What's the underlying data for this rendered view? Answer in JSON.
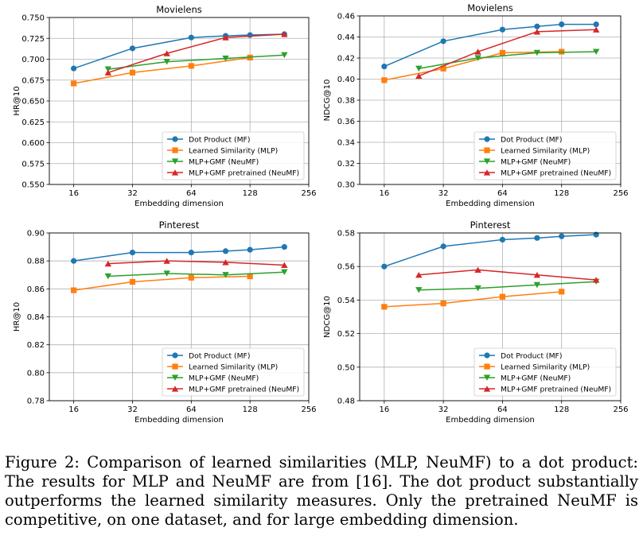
{
  "figure": {
    "caption": "Figure 2: Comparison of learned similarities (MLP, NeuMF) to a dot product: The results for MLP and NeuMF are from [16]. The dot product substantially outperforms the learned similarity measures. Only the pretrained NeuMF is competitive, on one dataset, and for large embedding dimension."
  },
  "series_style": [
    {
      "name": "Dot Product (MF)",
      "color": "#1f77b4",
      "marker": "circle"
    },
    {
      "name": "Learned Similarity (MLP)",
      "color": "#ff7f0e",
      "marker": "square"
    },
    {
      "name": "MLP+GMF (NeuMF)",
      "color": "#2ca02c",
      "marker": "triangle-down"
    },
    {
      "name": "MLP+GMF pretrained (NeuMF)",
      "color": "#d62728",
      "marker": "triangle-up"
    }
  ],
  "chart_data": [
    {
      "type": "line",
      "title": "Movielens",
      "xlabel": "Embedding dimension",
      "ylabel": "HR@10",
      "xscale": "log2",
      "xlim": [
        12,
        256
      ],
      "xticks": [
        16,
        32,
        64,
        128,
        256
      ],
      "ylim": [
        0.55,
        0.75
      ],
      "yticks": [
        "0.550",
        "0.575",
        "0.600",
        "0.625",
        "0.650",
        "0.675",
        "0.700",
        "0.725",
        "0.750"
      ],
      "grid": true,
      "legend": "lower-right",
      "series": [
        {
          "name": "Dot Product (MF)",
          "x": [
            16,
            32,
            64,
            96,
            128,
            192
          ],
          "y": [
            0.689,
            0.713,
            0.726,
            0.728,
            0.729,
            0.73
          ]
        },
        {
          "name": "Learned Similarity (MLP)",
          "x": [
            16,
            32,
            64,
            128
          ],
          "y": [
            0.671,
            0.684,
            0.692,
            0.702
          ]
        },
        {
          "name": "MLP+GMF (NeuMF)",
          "x": [
            24,
            48,
            96,
            192
          ],
          "y": [
            0.688,
            0.697,
            0.701,
            0.705
          ]
        },
        {
          "name": "MLP+GMF pretrained (NeuMF)",
          "x": [
            24,
            48,
            96,
            192
          ],
          "y": [
            0.684,
            0.707,
            0.726,
            0.73
          ]
        }
      ]
    },
    {
      "type": "line",
      "title": "Movielens",
      "xlabel": "Embedding dimension",
      "ylabel": "NDCG@10",
      "xscale": "log2",
      "xlim": [
        12,
        256
      ],
      "xticks": [
        16,
        32,
        64,
        128,
        256
      ],
      "ylim": [
        0.3,
        0.46
      ],
      "yticks": [
        "0.30",
        "0.32",
        "0.34",
        "0.36",
        "0.38",
        "0.40",
        "0.42",
        "0.44",
        "0.46"
      ],
      "grid": true,
      "legend": "lower-right",
      "series": [
        {
          "name": "Dot Product (MF)",
          "x": [
            16,
            32,
            64,
            96,
            128,
            192
          ],
          "y": [
            0.412,
            0.436,
            0.447,
            0.45,
            0.452,
            0.452
          ]
        },
        {
          "name": "Learned Similarity (MLP)",
          "x": [
            16,
            32,
            64,
            128
          ],
          "y": [
            0.399,
            0.41,
            0.425,
            0.426
          ]
        },
        {
          "name": "MLP+GMF (NeuMF)",
          "x": [
            24,
            48,
            96,
            192
          ],
          "y": [
            0.41,
            0.42,
            0.425,
            0.426
          ]
        },
        {
          "name": "MLP+GMF pretrained (NeuMF)",
          "x": [
            24,
            48,
            96,
            192
          ],
          "y": [
            0.403,
            0.426,
            0.445,
            0.447
          ]
        }
      ]
    },
    {
      "type": "line",
      "title": "Pinterest",
      "xlabel": "Embedding dimension",
      "ylabel": "HR@10",
      "xscale": "log2",
      "xlim": [
        12,
        256
      ],
      "xticks": [
        16,
        32,
        64,
        128,
        256
      ],
      "ylim": [
        0.78,
        0.9
      ],
      "yticks": [
        "0.78",
        "0.80",
        "0.82",
        "0.84",
        "0.86",
        "0.88",
        "0.90"
      ],
      "grid": true,
      "legend": "lower-right",
      "series": [
        {
          "name": "Dot Product (MF)",
          "x": [
            16,
            32,
            64,
            96,
            128,
            192
          ],
          "y": [
            0.88,
            0.886,
            0.886,
            0.887,
            0.888,
            0.89
          ]
        },
        {
          "name": "Learned Similarity (MLP)",
          "x": [
            16,
            32,
            64,
            128
          ],
          "y": [
            0.859,
            0.865,
            0.868,
            0.869
          ]
        },
        {
          "name": "MLP+GMF (NeuMF)",
          "x": [
            24,
            48,
            96,
            192
          ],
          "y": [
            0.869,
            0.871,
            0.87,
            0.872
          ]
        },
        {
          "name": "MLP+GMF pretrained (NeuMF)",
          "x": [
            24,
            48,
            96,
            192
          ],
          "y": [
            0.878,
            0.88,
            0.879,
            0.877
          ]
        }
      ]
    },
    {
      "type": "line",
      "title": "Pinterest",
      "xlabel": "Embedding dimension",
      "ylabel": "NDCG@10",
      "xscale": "log2",
      "xlim": [
        12,
        256
      ],
      "xticks": [
        16,
        32,
        64,
        128,
        256
      ],
      "ylim": [
        0.48,
        0.58
      ],
      "yticks": [
        "0.48",
        "0.50",
        "0.52",
        "0.54",
        "0.56",
        "0.58"
      ],
      "grid": true,
      "legend": "lower-right",
      "series": [
        {
          "name": "Dot Product (MF)",
          "x": [
            16,
            32,
            64,
            96,
            128,
            192
          ],
          "y": [
            0.56,
            0.572,
            0.576,
            0.577,
            0.578,
            0.579
          ]
        },
        {
          "name": "Learned Similarity (MLP)",
          "x": [
            16,
            32,
            64,
            128
          ],
          "y": [
            0.536,
            0.538,
            0.542,
            0.545
          ]
        },
        {
          "name": "MLP+GMF (NeuMF)",
          "x": [
            24,
            48,
            96,
            192
          ],
          "y": [
            0.546,
            0.547,
            0.549,
            0.551
          ]
        },
        {
          "name": "MLP+GMF pretrained (NeuMF)",
          "x": [
            24,
            48,
            96,
            192
          ],
          "y": [
            0.555,
            0.558,
            0.555,
            0.552
          ]
        }
      ]
    }
  ]
}
